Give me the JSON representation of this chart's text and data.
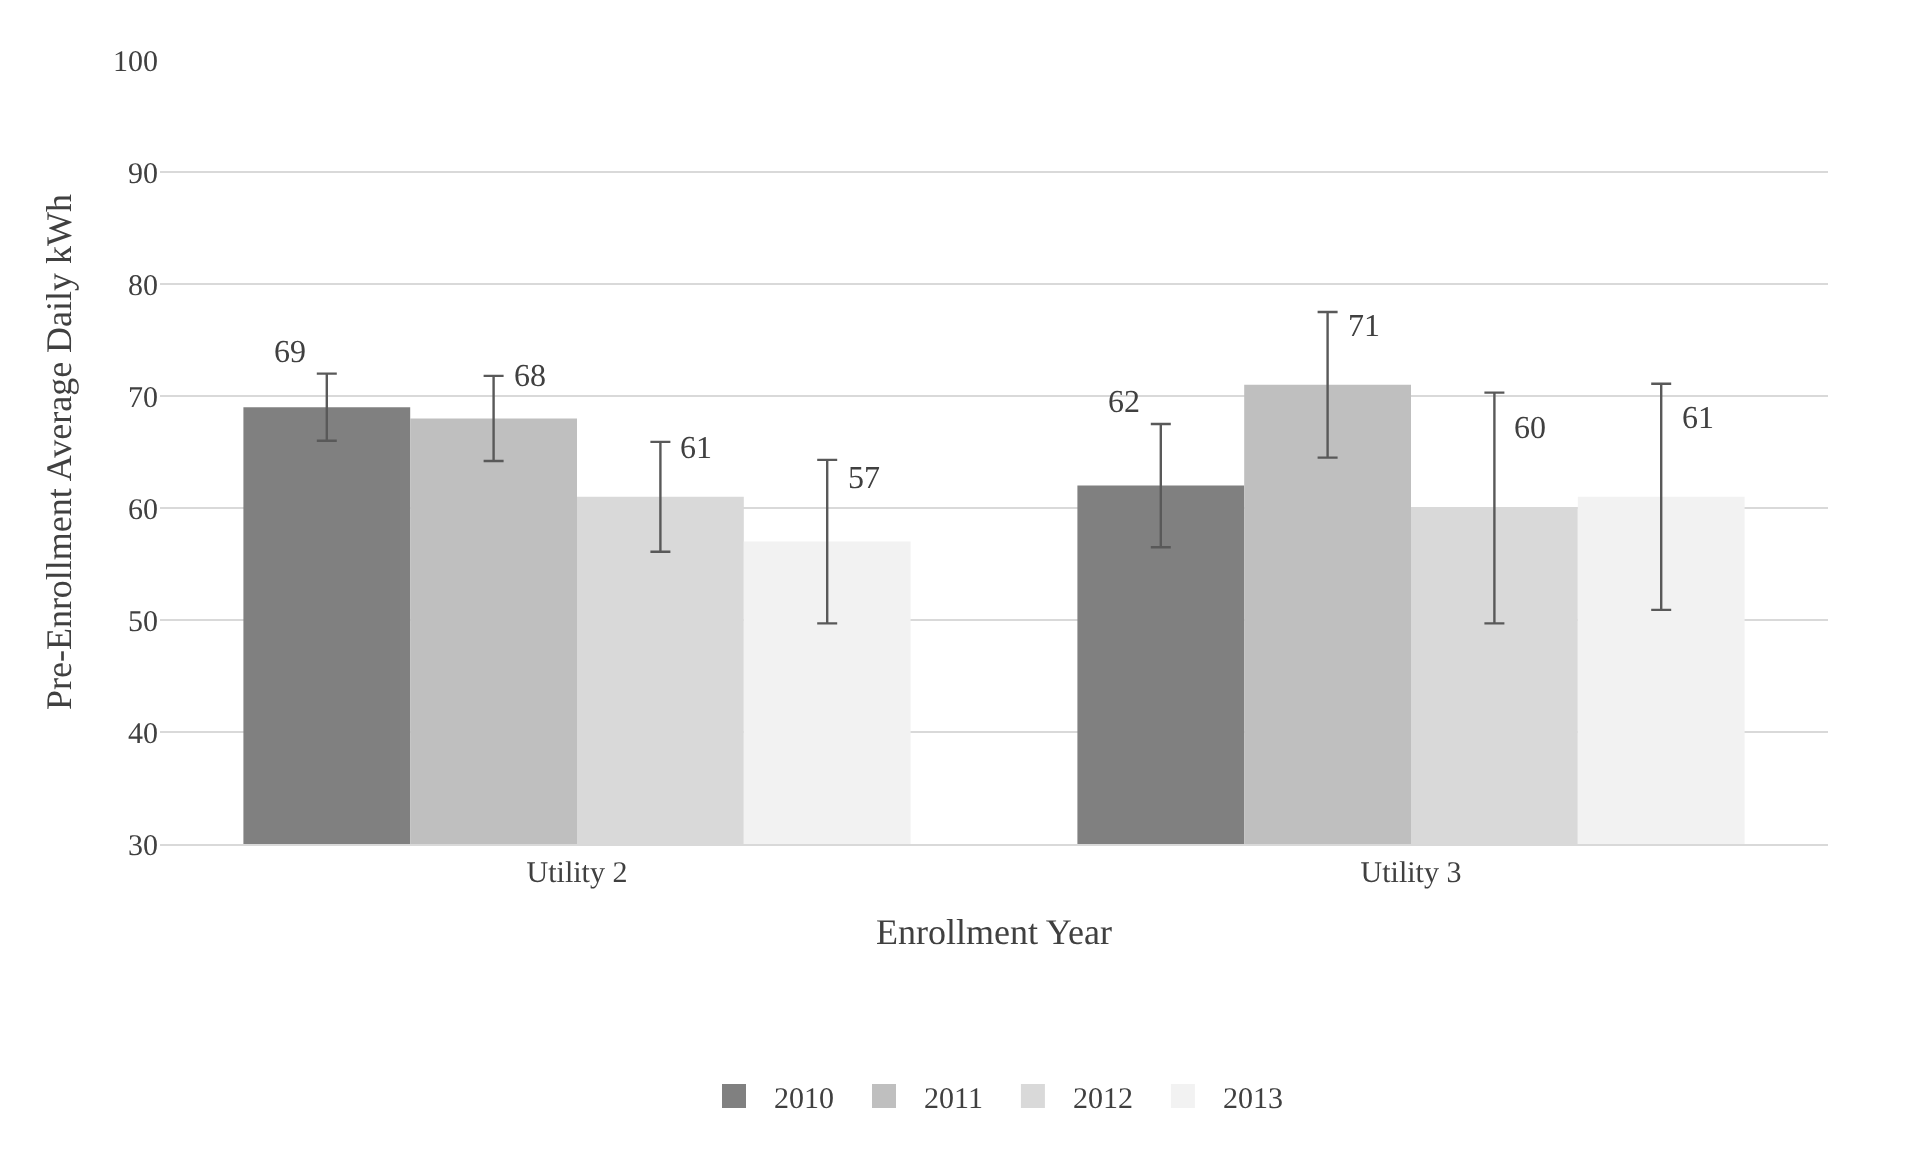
{
  "chart_data": {
    "type": "bar",
    "xlabel": "Enrollment Year",
    "ylabel": "Pre-Enrollment Average Daily kWh",
    "categories": [
      "Utility 2",
      "Utility 3"
    ],
    "series": [
      {
        "name": "2010",
        "color": "#808080",
        "values": [
          69,
          62
        ],
        "errors": [
          3.0,
          5.5
        ]
      },
      {
        "name": "2011",
        "color": "#bfbfbf",
        "values": [
          68,
          71
        ],
        "errors": [
          3.8,
          6.5
        ]
      },
      {
        "name": "2012",
        "color": "#d9d9d9",
        "values": [
          61,
          60
        ],
        "errors": [
          4.9,
          10.3
        ]
      },
      {
        "name": "2013",
        "color": "#f2f2f2",
        "values": [
          57,
          61
        ],
        "errors": [
          7.3,
          10.1
        ]
      }
    ],
    "ylim": [
      30,
      100
    ],
    "yticks": [
      30,
      40,
      50,
      60,
      70,
      80,
      90,
      100
    ],
    "grid": "y",
    "legend": "bottom",
    "data_labels": true
  }
}
